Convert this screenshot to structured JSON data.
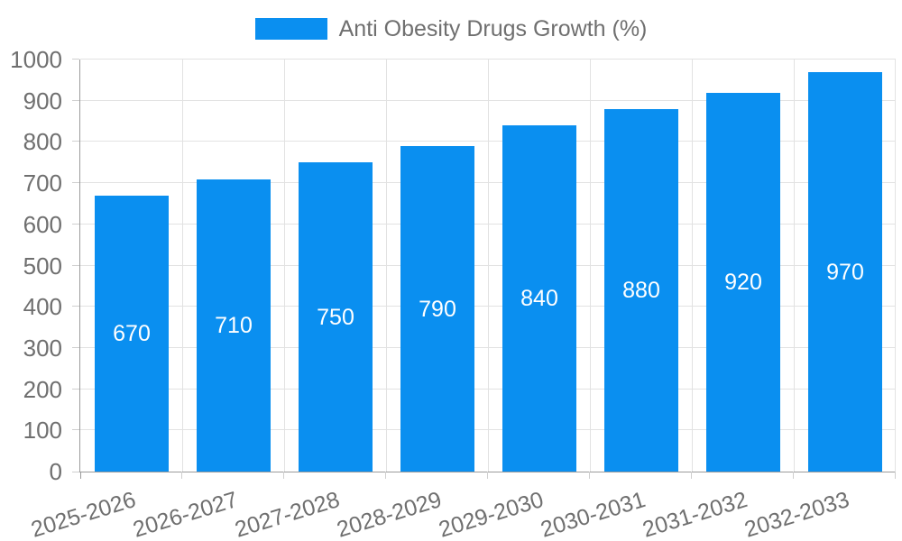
{
  "chart_data": {
    "type": "bar",
    "title": "Anti Obesity Drugs Growth (%)",
    "legend_position": "top-center",
    "categories": [
      "2025-2026",
      "2026-2027",
      "2027-2028",
      "2028-2029",
      "2029-2030",
      "2030-2031",
      "2031-2032",
      "2032-2033"
    ],
    "series": [
      {
        "name": "Anti Obesity Drugs Growth (%)",
        "values": [
          670,
          710,
          750,
          790,
          840,
          880,
          920,
          970
        ]
      }
    ],
    "value_labels": [
      "670",
      "710",
      "750",
      "790",
      "840",
      "880",
      "920",
      "970"
    ],
    "xlabel": "",
    "ylabel": "",
    "ylim": [
      0,
      1000
    ],
    "y_ticks": [
      "0",
      "100",
      "200",
      "300",
      "400",
      "500",
      "600",
      "700",
      "800",
      "900",
      "1000"
    ],
    "grid": "on",
    "colors": {
      "bar": "#0a8ff0",
      "grid_line": "#e2e2e2",
      "axis_line": "#9b9b9b",
      "tick_mark": "#cfcfcf",
      "tick_text": "#6f6f6f",
      "bar_value_text": "#ffffff",
      "background": "#ffffff"
    }
  }
}
